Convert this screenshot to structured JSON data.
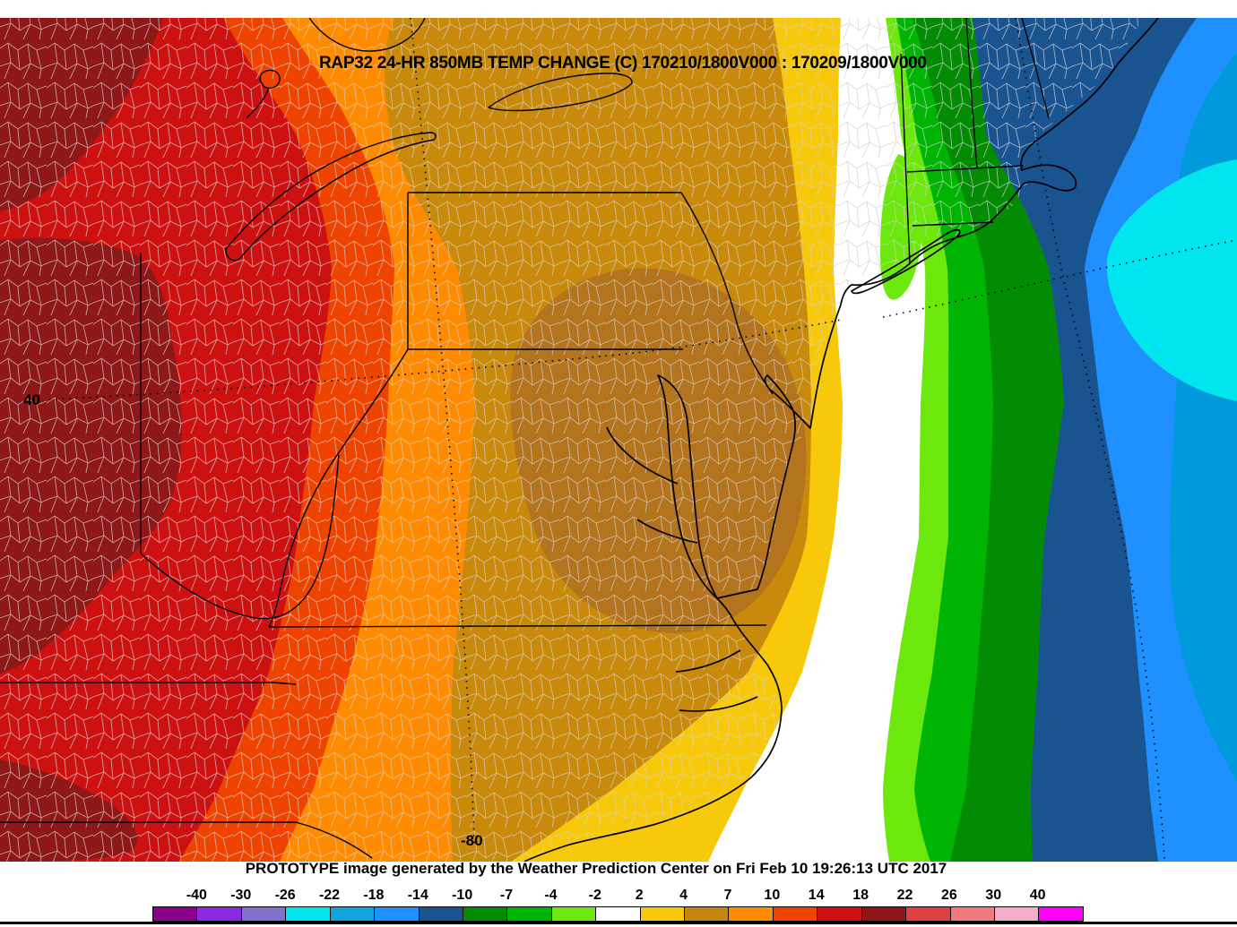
{
  "title": {
    "text": "RAP32 24-HR 850MB TEMP CHANGE (C) 170210/1800V000 : 170209/1800V000"
  },
  "map": {
    "graticule_labels": {
      "lat": "40",
      "lon": "-80"
    },
    "palette": {
      "darkred": "#8E1717",
      "red": "#CD1111",
      "orangered": "#EE4400",
      "orange": "#FF8C00",
      "tan": "#C98A0C",
      "tandark": "#B4731D",
      "gold": "#F8C90A",
      "white": "#FFFFFF",
      "lawn": "#6CE80C",
      "green": "#00B404",
      "darkgreen": "#048B04",
      "navy": "#1A5490",
      "dodger": "#1E90FF",
      "cerulean": "#009ADC",
      "cyan": "#00E5EE"
    },
    "line_colors": {
      "state": "#000000",
      "county": "#CFCFCF",
      "coast": "#000000",
      "graticule": "#000000"
    }
  },
  "footer": {
    "prototype_text": "PROTOTYPE image generated by the Weather Prediction Center on Fri Feb 10 19:26:13 UTC 2017"
  },
  "colorbar": {
    "tick_labels": [
      "-40",
      "-30",
      "-26",
      "-22",
      "-18",
      "-14",
      "-10",
      "-7",
      "-4",
      "-2",
      "2",
      "4",
      "7",
      "10",
      "14",
      "18",
      "22",
      "26",
      "30",
      "40"
    ],
    "segment_colors": [
      "#8B008B",
      "#8A2BE2",
      "#8470CD",
      "#00E5EE",
      "#0FA6DC",
      "#1E90FF",
      "#1A5490",
      "#048B04",
      "#00B404",
      "#6CE80C",
      "#FFFFFF",
      "#F8C90A",
      "#C4860E",
      "#FF8C00",
      "#EE4400",
      "#CD1010",
      "#8E1616",
      "#E04040",
      "#EE7C7C",
      "#F4AECB",
      "#FF00FF"
    ],
    "border_color": "#000000"
  }
}
